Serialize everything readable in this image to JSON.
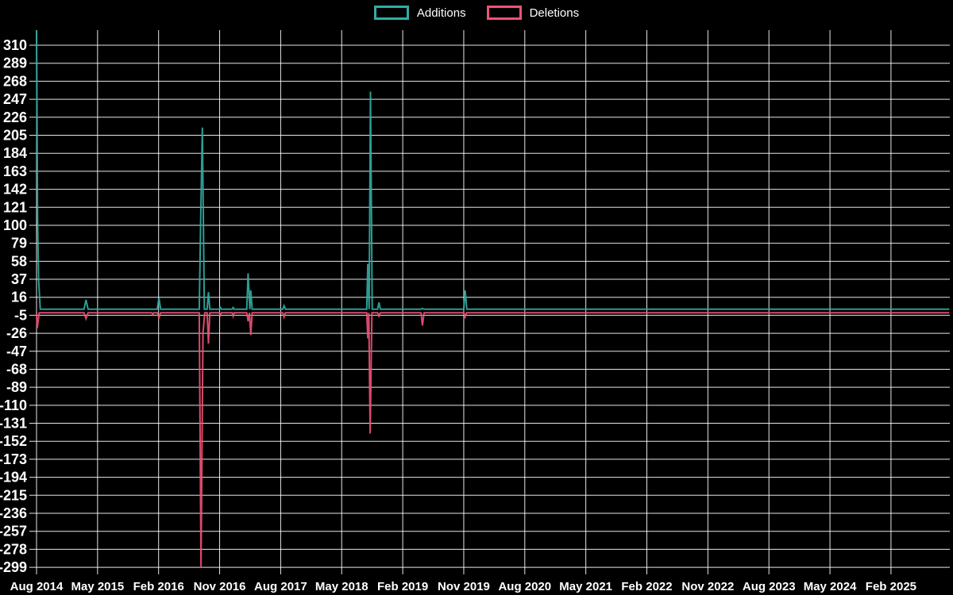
{
  "legend": {
    "items": [
      {
        "label": "Additions",
        "color": "#31ada3"
      },
      {
        "label": "Deletions",
        "color": "#ef5278"
      }
    ]
  },
  "chart_data": {
    "type": "line",
    "title": "",
    "background_color": "#000000",
    "grid_color": "#ffffff",
    "text_color": "#ffffff",
    "grid": true,
    "legend_position": "top-center",
    "x_unit": "months since Aug 2014",
    "x_axis": {
      "ticks": [
        {
          "label": "Aug 2014",
          "m": 0
        },
        {
          "label": "May 2015",
          "m": 9
        },
        {
          "label": "Feb 2016",
          "m": 18
        },
        {
          "label": "Nov 2016",
          "m": 27
        },
        {
          "label": "Aug 2017",
          "m": 36
        },
        {
          "label": "May 2018",
          "m": 45
        },
        {
          "label": "Feb 2019",
          "m": 54
        },
        {
          "label": "Nov 2019",
          "m": 63
        },
        {
          "label": "Aug 2020",
          "m": 72
        },
        {
          "label": "May 2021",
          "m": 81
        },
        {
          "label": "Feb 2022",
          "m": 90
        },
        {
          "label": "Nov 2022",
          "m": 99
        },
        {
          "label": "Aug 2023",
          "m": 108
        },
        {
          "label": "May 2024",
          "m": 117
        },
        {
          "label": "Feb 2025",
          "m": 126
        }
      ]
    },
    "y_axis": {
      "min": -299,
      "max": 310,
      "step": 21,
      "ticks": [
        310,
        289,
        268,
        247,
        226,
        205,
        184,
        163,
        142,
        121,
        100,
        79,
        58,
        37,
        16,
        -5,
        -26,
        -47,
        -68,
        -89,
        -110,
        -131,
        -152,
        -173,
        -194,
        -215,
        -236,
        -257,
        -278,
        -299
      ]
    },
    "series": [
      {
        "name": "Additions",
        "color": "#31ada3",
        "points": [
          [
            0,
            330
          ],
          [
            0.15,
            110
          ],
          [
            0.3,
            37
          ],
          [
            0.55,
            2
          ],
          [
            7.0,
            2
          ],
          [
            7.3,
            13
          ],
          [
            7.6,
            2
          ],
          [
            17.8,
            2
          ],
          [
            18.05,
            15
          ],
          [
            18.3,
            2
          ],
          [
            24.0,
            2
          ],
          [
            24.2,
            101
          ],
          [
            24.45,
            214
          ],
          [
            24.75,
            2
          ],
          [
            25.15,
            2
          ],
          [
            25.35,
            22
          ],
          [
            25.55,
            2
          ],
          [
            26.95,
            2
          ],
          [
            27.1,
            4
          ],
          [
            27.25,
            2
          ],
          [
            28.85,
            2
          ],
          [
            29.0,
            4
          ],
          [
            29.15,
            2
          ],
          [
            31.0,
            2
          ],
          [
            31.2,
            44
          ],
          [
            31.45,
            2
          ],
          [
            31.6,
            24
          ],
          [
            31.8,
            2
          ],
          [
            36.3,
            2
          ],
          [
            36.5,
            6
          ],
          [
            36.7,
            2
          ],
          [
            48.7,
            2
          ],
          [
            48.85,
            55
          ],
          [
            49.05,
            2
          ],
          [
            49.25,
            256
          ],
          [
            49.5,
            2
          ],
          [
            50.3,
            2
          ],
          [
            50.5,
            10
          ],
          [
            50.7,
            2
          ],
          [
            56.7,
            2
          ],
          [
            56.9,
            3
          ],
          [
            57.1,
            2
          ],
          [
            63.0,
            2
          ],
          [
            63.2,
            24
          ],
          [
            63.45,
            2
          ],
          [
            134.6,
            2
          ]
        ]
      },
      {
        "name": "Deletions",
        "color": "#ef5278",
        "points": [
          [
            0,
            -2
          ],
          [
            0.1,
            -20
          ],
          [
            0.4,
            -2
          ],
          [
            7.0,
            -2
          ],
          [
            7.3,
            -9
          ],
          [
            7.6,
            -2
          ],
          [
            17.0,
            -2
          ],
          [
            17.15,
            -4
          ],
          [
            17.3,
            -2
          ],
          [
            17.8,
            -2
          ],
          [
            18.05,
            -8
          ],
          [
            18.3,
            -2
          ],
          [
            24.0,
            -2
          ],
          [
            24.25,
            -299
          ],
          [
            24.55,
            -26
          ],
          [
            24.8,
            -2
          ],
          [
            25.15,
            -2
          ],
          [
            25.35,
            -38
          ],
          [
            25.55,
            -2
          ],
          [
            26.95,
            -2
          ],
          [
            27.1,
            -5
          ],
          [
            27.25,
            -2
          ],
          [
            28.85,
            -2
          ],
          [
            29.0,
            -6
          ],
          [
            29.15,
            -2
          ],
          [
            31.0,
            -2
          ],
          [
            31.2,
            -12
          ],
          [
            31.4,
            -2
          ],
          [
            31.6,
            -28
          ],
          [
            31.8,
            -2
          ],
          [
            36.3,
            -2
          ],
          [
            36.5,
            -7
          ],
          [
            36.7,
            -2
          ],
          [
            48.7,
            -2
          ],
          [
            48.85,
            -32
          ],
          [
            49.0,
            -2
          ],
          [
            49.2,
            -143
          ],
          [
            49.45,
            -2
          ],
          [
            50.3,
            -2
          ],
          [
            50.5,
            -6
          ],
          [
            50.7,
            -2
          ],
          [
            56.7,
            -2
          ],
          [
            56.9,
            -17
          ],
          [
            57.15,
            -2
          ],
          [
            63.0,
            -2
          ],
          [
            63.2,
            -7
          ],
          [
            63.4,
            -2
          ],
          [
            134.6,
            -2
          ]
        ]
      }
    ]
  }
}
